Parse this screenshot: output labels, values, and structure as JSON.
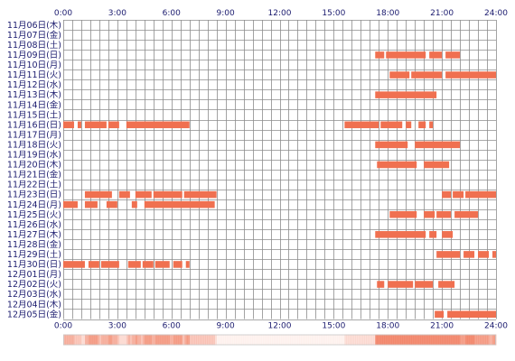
{
  "chart_data": {
    "type": "timeline",
    "title": "",
    "xlabel": "",
    "ylabel": "",
    "xlim": [
      0,
      24
    ],
    "x_ticks": [
      "0:00",
      "3:00",
      "6:00",
      "9:00",
      "12:00",
      "15:00",
      "18:00",
      "21:00",
      "24:00"
    ],
    "grid": true,
    "bar_color": "#f07050",
    "grid_color": "#8c8c8c",
    "text_color": "#1a1a6e",
    "rows": [
      {
        "label": "11月06日(木)",
        "segments": []
      },
      {
        "label": "11月07日(金)",
        "segments": []
      },
      {
        "label": "11月08日(土)",
        "segments": []
      },
      {
        "label": "11月09日(日)",
        "segments": [
          [
            17.3,
            17.8
          ],
          [
            17.9,
            20.1
          ],
          [
            20.3,
            21.0
          ],
          [
            21.2,
            22.0
          ]
        ]
      },
      {
        "label": "11月10日(月)",
        "segments": []
      },
      {
        "label": "11月11日(火)",
        "segments": [
          [
            18.1,
            19.2
          ],
          [
            19.3,
            21.0
          ],
          [
            21.2,
            24.0
          ]
        ]
      },
      {
        "label": "11月12日(水)",
        "segments": []
      },
      {
        "label": "11月13日(木)",
        "segments": [
          [
            17.3,
            20.7
          ]
        ]
      },
      {
        "label": "11月14日(金)",
        "segments": []
      },
      {
        "label": "11月15日(土)",
        "segments": []
      },
      {
        "label": "11月16日(日)",
        "segments": [
          [
            0.0,
            0.6
          ],
          [
            0.8,
            1.0
          ],
          [
            1.2,
            2.4
          ],
          [
            2.5,
            3.1
          ],
          [
            3.5,
            7.0
          ],
          [
            15.6,
            17.5
          ],
          [
            17.6,
            18.8
          ],
          [
            19.0,
            19.3
          ],
          [
            19.7,
            20.1
          ],
          [
            20.3,
            20.5
          ]
        ]
      },
      {
        "label": "11月17日(月)",
        "segments": []
      },
      {
        "label": "11月18日(火)",
        "segments": [
          [
            17.3,
            19.1
          ],
          [
            19.5,
            22.0
          ]
        ]
      },
      {
        "label": "11月19日(水)",
        "segments": []
      },
      {
        "label": "11月20日(木)",
        "segments": [
          [
            17.4,
            19.6
          ],
          [
            20.0,
            21.4
          ]
        ]
      },
      {
        "label": "11月21日(金)",
        "segments": []
      },
      {
        "label": "11月22日(土)",
        "segments": []
      },
      {
        "label": "11月23日(日)",
        "segments": [
          [
            1.2,
            2.7
          ],
          [
            3.1,
            3.7
          ],
          [
            4.0,
            4.9
          ],
          [
            5.0,
            6.6
          ],
          [
            6.7,
            8.5
          ],
          [
            21.0,
            21.5
          ],
          [
            21.6,
            22.2
          ],
          [
            22.3,
            24.0
          ]
        ]
      },
      {
        "label": "11月24日(月)",
        "segments": [
          [
            0.0,
            0.8
          ],
          [
            1.2,
            1.9
          ],
          [
            2.4,
            3.0
          ],
          [
            3.8,
            4.1
          ],
          [
            4.5,
            8.4
          ]
        ]
      },
      {
        "label": "11月25日(火)",
        "segments": [
          [
            18.1,
            19.6
          ],
          [
            20.0,
            20.6
          ],
          [
            20.7,
            21.5
          ],
          [
            21.7,
            23.0
          ]
        ]
      },
      {
        "label": "11月26日(水)",
        "segments": []
      },
      {
        "label": "11月27日(木)",
        "segments": [
          [
            17.3,
            20.1
          ],
          [
            20.3,
            20.7
          ],
          [
            21.0,
            21.6
          ]
        ]
      },
      {
        "label": "11月28日(金)",
        "segments": []
      },
      {
        "label": "11月29日(土)",
        "segments": [
          [
            20.7,
            22.0
          ],
          [
            22.2,
            22.8
          ],
          [
            23.0,
            23.6
          ],
          [
            23.8,
            24.0
          ]
        ]
      },
      {
        "label": "11月30日(日)",
        "segments": [
          [
            0.0,
            1.2
          ],
          [
            1.4,
            2.0
          ],
          [
            2.1,
            3.1
          ],
          [
            3.6,
            4.3
          ],
          [
            4.4,
            5.0
          ],
          [
            5.1,
            5.9
          ],
          [
            6.1,
            6.6
          ],
          [
            6.8,
            7.0
          ]
        ]
      },
      {
        "label": "12月01日(月)",
        "segments": []
      },
      {
        "label": "12月02日(火)",
        "segments": [
          [
            17.4,
            17.8
          ],
          [
            18.0,
            19.4
          ],
          [
            19.5,
            20.5
          ],
          [
            20.8,
            21.7
          ]
        ]
      },
      {
        "label": "12月03日(水)",
        "segments": []
      },
      {
        "label": "12月04日(木)",
        "segments": []
      },
      {
        "label": "12月05日(金)",
        "segments": [
          [
            20.6,
            21.1
          ],
          [
            21.3,
            24.0
          ]
        ]
      }
    ]
  }
}
